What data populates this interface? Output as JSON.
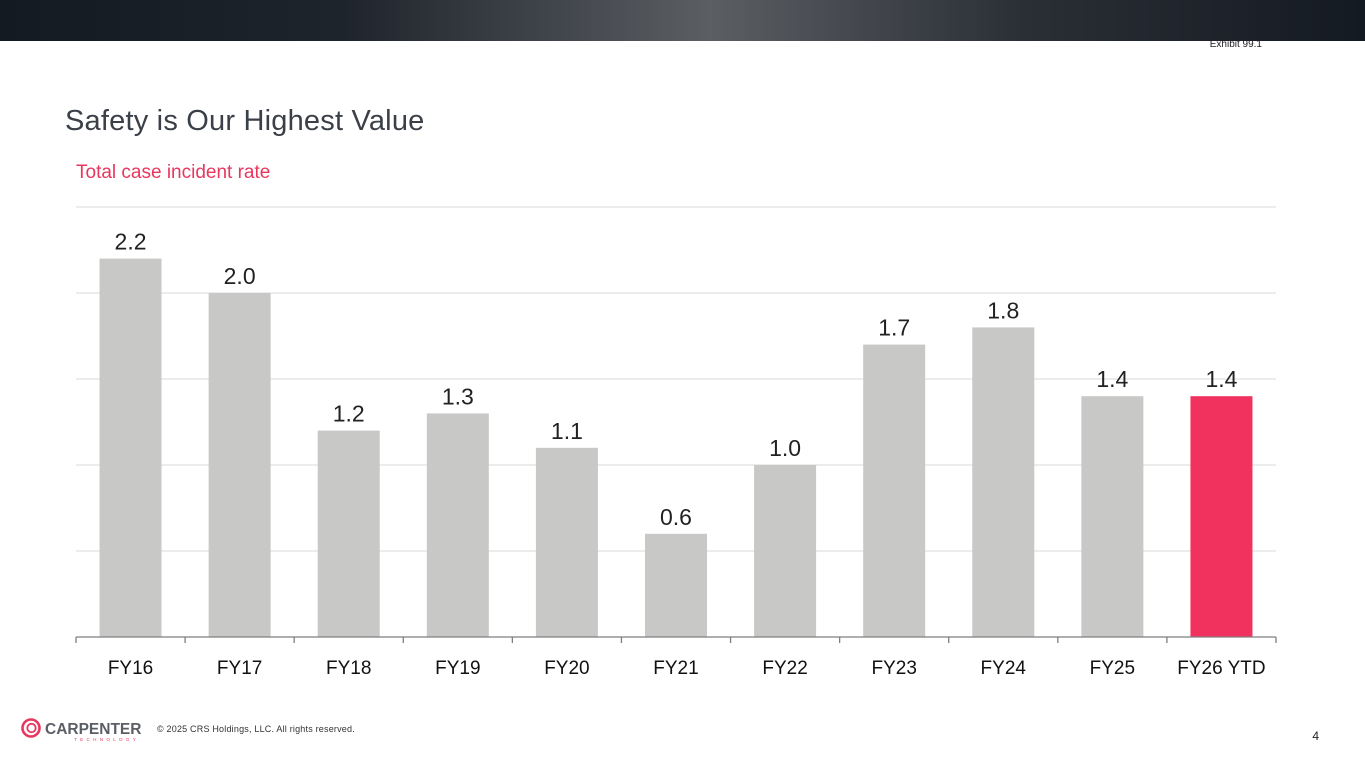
{
  "header": {
    "exhibit": "Exhibit 99.1"
  },
  "page": {
    "title": "Safety is Our Highest Value",
    "number": "4"
  },
  "footer": {
    "brand": "CARPENTER",
    "brand_sub": "TECHNOLOGY",
    "copyright": "© 2025 CRS Holdings, LLC. All rights reserved."
  },
  "colors": {
    "bar_default": "#c8c8c6",
    "bar_highlight": "#f2325e",
    "accent": "#e8375e",
    "gridline": "#d9d9d9",
    "axis": "#7f7f7f"
  },
  "chart_data": {
    "type": "bar",
    "title": "Total case incident rate",
    "categories": [
      "FY16",
      "FY17",
      "FY18",
      "FY19",
      "FY20",
      "FY21",
      "FY22",
      "FY23",
      "FY24",
      "FY25",
      "FY26 YTD"
    ],
    "values": [
      2.2,
      2.0,
      1.2,
      1.3,
      1.1,
      0.6,
      1.0,
      1.7,
      1.8,
      1.4,
      1.4
    ],
    "labels": [
      "2.2",
      "2.0",
      "1.2",
      "1.3",
      "1.1",
      "0.6",
      "1.0",
      "1.7",
      "1.8",
      "1.4",
      "1.4"
    ],
    "highlight": "FY26 YTD",
    "ylim": [
      0,
      2.5
    ],
    "gridlines": [
      0.5,
      1.0,
      1.5,
      2.0,
      2.5
    ],
    "grid": true,
    "y_axis_labels_visible": false,
    "legend": "none"
  }
}
